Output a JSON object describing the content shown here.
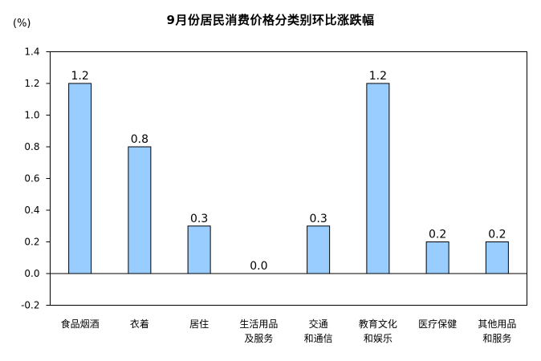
{
  "chart_data": {
    "type": "bar",
    "title": "9月份居民消费价格分类别环比涨跌幅",
    "unit": "(%)",
    "categories": [
      [
        "食品烟酒"
      ],
      [
        "衣着"
      ],
      [
        "居住"
      ],
      [
        "生活用品",
        "及服务"
      ],
      [
        "交通",
        "和通信"
      ],
      [
        "教育文化",
        "和娱乐"
      ],
      [
        "医疗保健"
      ],
      [
        "其他用品",
        "和服务"
      ]
    ],
    "values": [
      1.2,
      0.8,
      0.3,
      0.0,
      0.3,
      1.2,
      0.2,
      0.2
    ],
    "data_labels": [
      "1.2",
      "0.8",
      "0.3",
      "0.0",
      "0.3",
      "1.2",
      "0.2",
      "0.2"
    ],
    "y_ticks": [
      "1.4",
      "1.2",
      "1.0",
      "0.8",
      "0.6",
      "0.4",
      "0.2",
      "0.0",
      "-0.2"
    ],
    "ylim": [
      -0.2,
      1.4
    ],
    "grid": false,
    "colors": {
      "bar_fill": "#99ccff",
      "bar_stroke": "#000000",
      "axis": "#000000"
    }
  }
}
